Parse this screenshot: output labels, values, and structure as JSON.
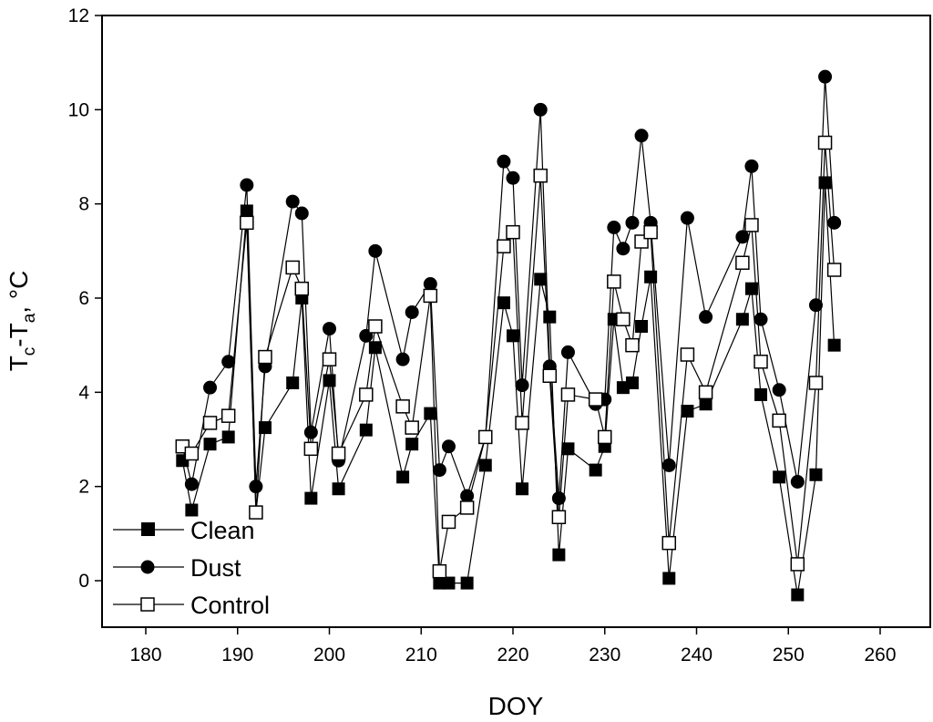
{
  "chart_data": {
    "type": "line",
    "xlabel": "DOY",
    "ylabel_main": "T",
    "ylabel_sub1": "c",
    "ylabel_mid": "-T",
    "ylabel_sub2": "a",
    "ylabel_end": ", °C",
    "xlim": [
      175,
      263
    ],
    "ylim": [
      -1,
      12
    ],
    "xticks": [
      180,
      190,
      200,
      210,
      220,
      230,
      240,
      250,
      260
    ],
    "yticks": [
      0,
      2,
      4,
      6,
      8,
      10,
      12
    ],
    "legend_position": "bottom-left",
    "series": [
      {
        "name": "Clean",
        "marker": "filled-square",
        "x": [
          184,
          185,
          187,
          189,
          191,
          192,
          193,
          196,
          197,
          198,
          200,
          201,
          204,
          205,
          208,
          209,
          211,
          212,
          213,
          215,
          217,
          219,
          220,
          221,
          223,
          224,
          225,
          226,
          229,
          230,
          231,
          232,
          233,
          234,
          235,
          237,
          239,
          241,
          245,
          246,
          247,
          249,
          251,
          253,
          254,
          255
        ],
        "y": [
          2.55,
          1.5,
          2.9,
          3.05,
          7.85,
          1.45,
          3.25,
          4.2,
          6.0,
          1.75,
          4.25,
          1.95,
          3.2,
          4.95,
          2.2,
          2.9,
          3.55,
          -0.05,
          -0.05,
          -0.05,
          2.45,
          5.9,
          5.2,
          1.95,
          6.4,
          5.6,
          0.55,
          2.8,
          2.35,
          2.85,
          5.55,
          4.1,
          4.2,
          5.4,
          6.45,
          0.05,
          3.6,
          3.75,
          5.55,
          6.2,
          3.95,
          2.2,
          -0.3,
          2.25,
          8.45,
          5.0
        ]
      },
      {
        "name": "Dust",
        "marker": "filled-circle",
        "x": [
          184,
          185,
          187,
          189,
          191,
          192,
          193,
          196,
          197,
          198,
          200,
          201,
          204,
          205,
          208,
          209,
          211,
          212,
          213,
          215,
          217,
          219,
          220,
          221,
          223,
          224,
          225,
          226,
          229,
          230,
          231,
          232,
          233,
          234,
          235,
          237,
          239,
          241,
          245,
          246,
          247,
          249,
          251,
          253,
          254,
          255
        ],
        "y": [
          2.85,
          2.05,
          4.1,
          4.65,
          8.4,
          2.0,
          4.55,
          8.05,
          7.8,
          3.15,
          5.35,
          2.55,
          5.2,
          7.0,
          4.7,
          5.7,
          6.3,
          2.35,
          2.85,
          1.8,
          3.05,
          8.9,
          8.55,
          4.15,
          10.0,
          4.55,
          1.75,
          4.85,
          3.75,
          3.85,
          7.5,
          7.05,
          7.6,
          9.45,
          7.6,
          2.45,
          7.7,
          5.6,
          7.3,
          8.8,
          5.55,
          4.05,
          2.1,
          5.85,
          10.7,
          7.6
        ]
      },
      {
        "name": "Control",
        "marker": "open-square",
        "x": [
          184,
          185,
          187,
          189,
          191,
          192,
          193,
          196,
          197,
          198,
          200,
          201,
          204,
          205,
          208,
          209,
          211,
          212,
          213,
          215,
          217,
          219,
          220,
          221,
          223,
          224,
          225,
          226,
          229,
          230,
          231,
          232,
          233,
          234,
          235,
          237,
          239,
          241,
          245,
          246,
          247,
          249,
          251,
          253,
          254,
          255
        ],
        "y": [
          2.85,
          2.7,
          3.35,
          3.5,
          7.6,
          1.45,
          4.75,
          6.65,
          6.2,
          2.8,
          4.7,
          2.7,
          3.95,
          5.4,
          3.7,
          3.25,
          6.05,
          0.2,
          1.25,
          1.55,
          3.05,
          7.1,
          7.4,
          3.35,
          8.6,
          4.35,
          1.35,
          3.95,
          3.85,
          3.05,
          6.35,
          5.55,
          5.0,
          7.2,
          7.4,
          0.8,
          4.8,
          4.0,
          6.75,
          7.55,
          4.65,
          3.4,
          0.35,
          4.2,
          9.3,
          6.6
        ]
      }
    ]
  }
}
